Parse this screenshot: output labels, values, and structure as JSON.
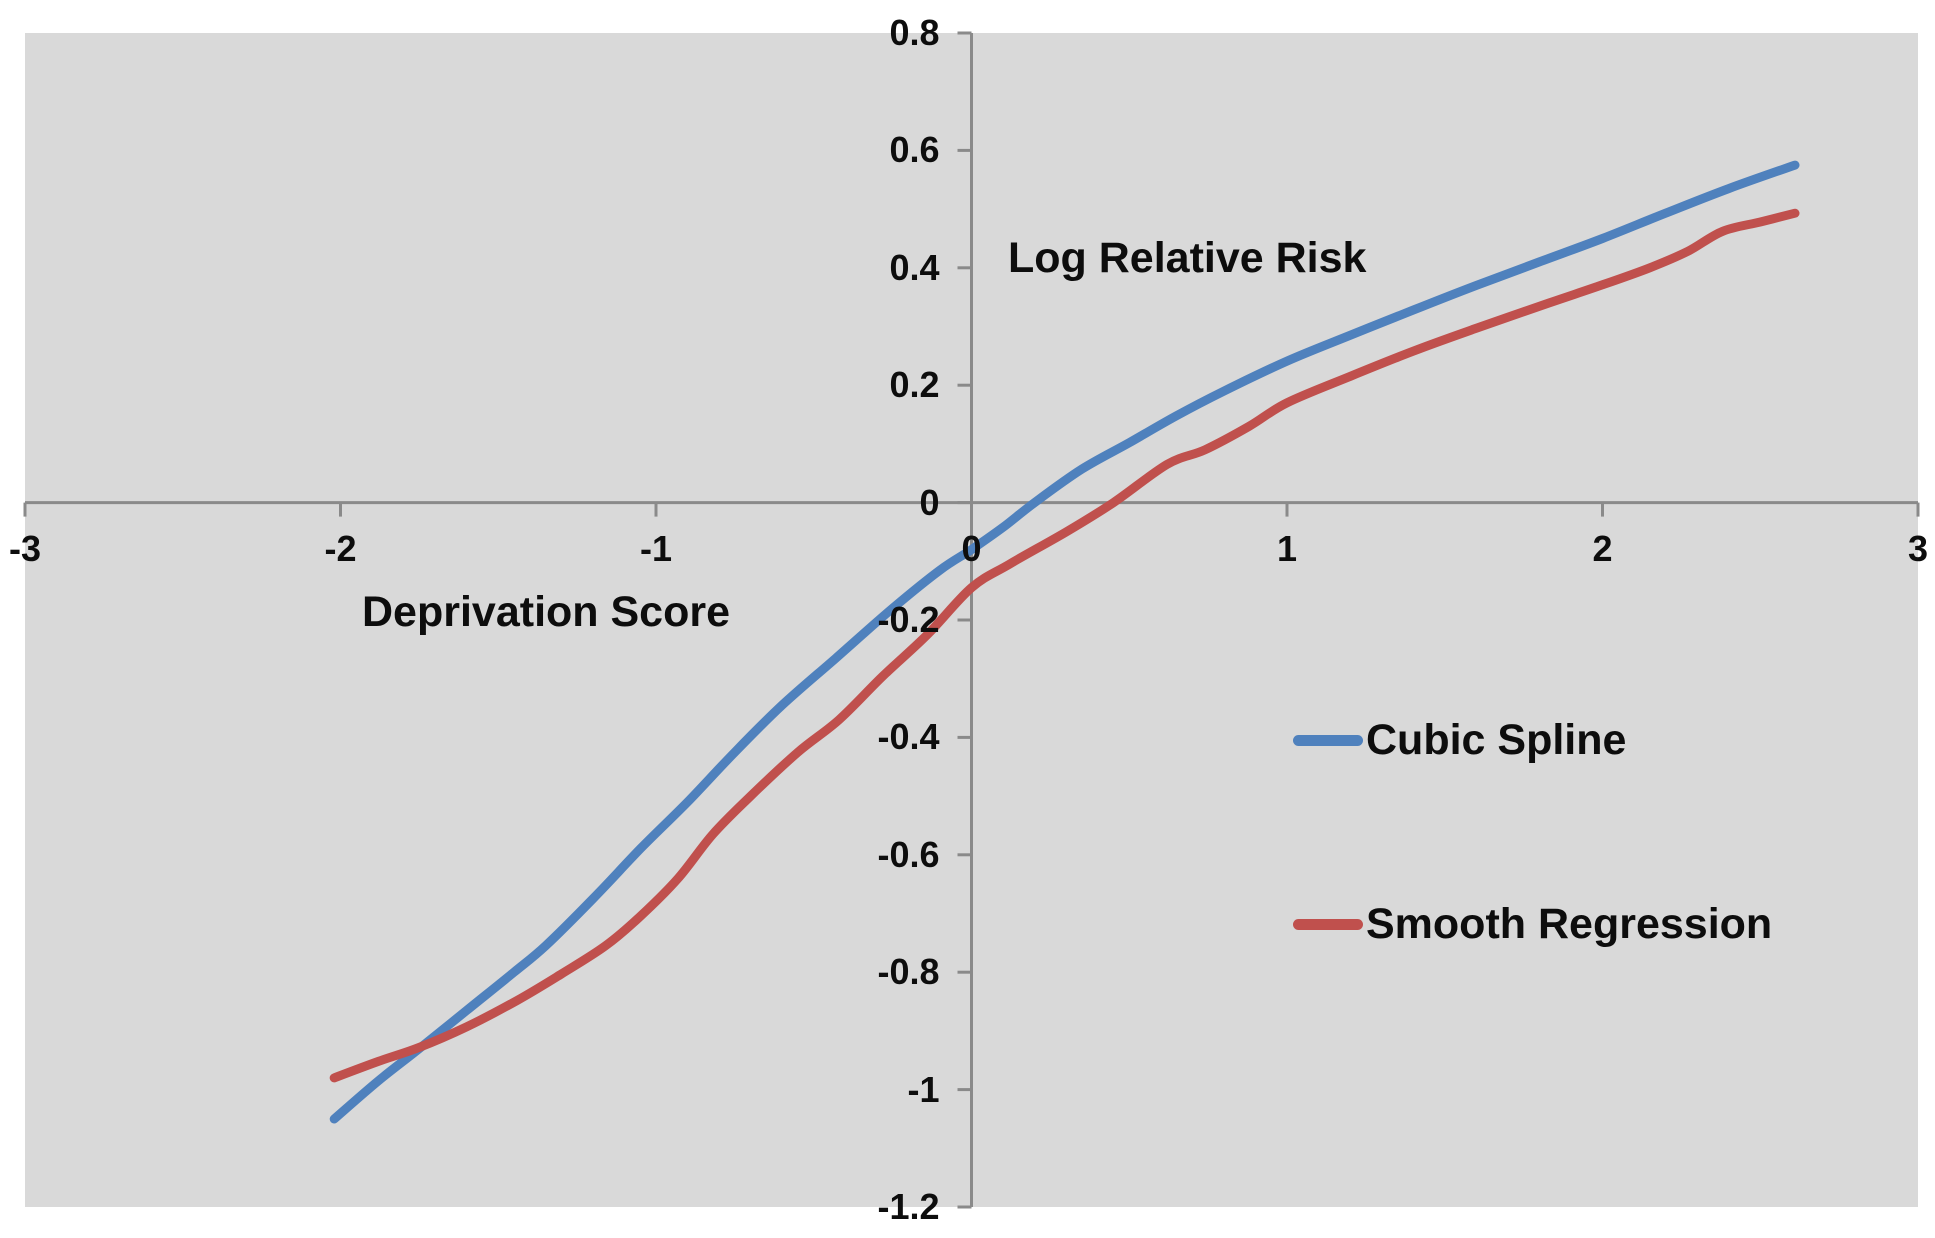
{
  "page_background": "#ffffff",
  "chart_data": {
    "type": "line",
    "title": "Log Relative Risk",
    "xlabel": "Deprivation Score",
    "ylabel": "",
    "grid": false,
    "plot_background": "#d9d9d9",
    "axis_color": "#8a8a8a",
    "text_color": "#0d0d0d",
    "legend_position": "inside-right",
    "x_axis": {
      "min": -3,
      "max": 3,
      "ticks": [
        -3,
        -2,
        -1,
        0,
        1,
        2,
        3
      ]
    },
    "y_axis": {
      "min": -1.2,
      "max": 0.8,
      "ticks": [
        0.8,
        0.6,
        0.4,
        0.2,
        0,
        -0.2,
        -0.4,
        -0.6,
        -0.8,
        -1,
        -1.2
      ]
    },
    "series": [
      {
        "name": "Cubic Spline",
        "color": "#4f81bd",
        "points": [
          [
            -2.02,
            -1.05
          ],
          [
            -1.88,
            -0.985
          ],
          [
            -1.75,
            -0.93
          ],
          [
            -1.6,
            -0.865
          ],
          [
            -1.45,
            -0.8
          ],
          [
            -1.35,
            -0.755
          ],
          [
            -1.2,
            -0.675
          ],
          [
            -1.05,
            -0.59
          ],
          [
            -0.9,
            -0.51
          ],
          [
            -0.75,
            -0.425
          ],
          [
            -0.6,
            -0.345
          ],
          [
            -0.43,
            -0.265
          ],
          [
            -0.25,
            -0.18
          ],
          [
            -0.1,
            -0.115
          ],
          [
            0,
            -0.08
          ],
          [
            0.1,
            -0.042
          ],
          [
            0.2,
            0
          ],
          [
            0.35,
            0.057
          ],
          [
            0.5,
            0.102
          ],
          [
            0.65,
            0.148
          ],
          [
            0.8,
            0.19
          ],
          [
            1,
            0.241
          ],
          [
            1.2,
            0.285
          ],
          [
            1.4,
            0.328
          ],
          [
            1.6,
            0.37
          ],
          [
            1.8,
            0.41
          ],
          [
            2,
            0.45
          ],
          [
            2.2,
            0.493
          ],
          [
            2.4,
            0.535
          ],
          [
            2.61,
            0.575
          ]
        ]
      },
      {
        "name": "Smooth Regression",
        "color": "#c0504d",
        "points": [
          [
            -2.02,
            -0.98
          ],
          [
            -1.88,
            -0.952
          ],
          [
            -1.75,
            -0.928
          ],
          [
            -1.6,
            -0.893
          ],
          [
            -1.44,
            -0.848
          ],
          [
            -1.3,
            -0.803
          ],
          [
            -1.16,
            -0.755
          ],
          [
            -1.05,
            -0.705
          ],
          [
            -0.93,
            -0.64
          ],
          [
            -0.82,
            -0.565
          ],
          [
            -0.7,
            -0.5
          ],
          [
            -0.55,
            -0.425
          ],
          [
            -0.42,
            -0.37
          ],
          [
            -0.28,
            -0.295
          ],
          [
            -0.14,
            -0.225
          ],
          [
            0,
            -0.145
          ],
          [
            0.12,
            -0.105
          ],
          [
            0.3,
            -0.05
          ],
          [
            0.45,
            0
          ],
          [
            0.62,
            0.065
          ],
          [
            0.74,
            0.09
          ],
          [
            0.88,
            0.13
          ],
          [
            1,
            0.17
          ],
          [
            1.2,
            0.215
          ],
          [
            1.4,
            0.258
          ],
          [
            1.6,
            0.297
          ],
          [
            1.83,
            0.34
          ],
          [
            2,
            0.371
          ],
          [
            2.15,
            0.4
          ],
          [
            2.27,
            0.428
          ],
          [
            2.38,
            0.462
          ],
          [
            2.5,
            0.478
          ],
          [
            2.61,
            0.493
          ]
        ]
      }
    ]
  }
}
